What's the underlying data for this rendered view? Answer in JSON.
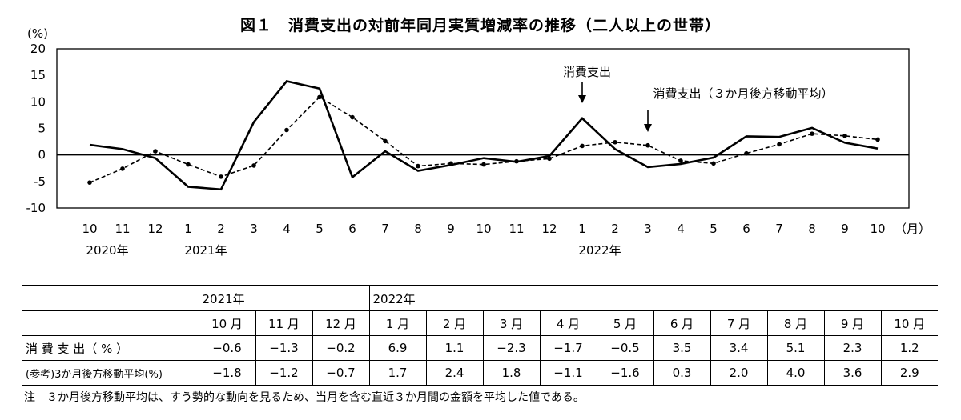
{
  "chart_data": {
    "type": "line",
    "title": "図１　消費支出の対前年同月実質増減率の推移（二人以上の世帯）",
    "ylabel": "(%)",
    "xunit": "（月）",
    "ylim": [
      -10,
      20
    ],
    "yticks": [
      20,
      15,
      10,
      5,
      0,
      -5,
      -10
    ],
    "categories": [
      "10",
      "11",
      "12",
      "1",
      "2",
      "3",
      "4",
      "5",
      "6",
      "7",
      "8",
      "9",
      "10",
      "11",
      "12",
      "1",
      "2",
      "3",
      "4",
      "5",
      "6",
      "7",
      "8",
      "9",
      "10"
    ],
    "year_labels": [
      {
        "index": 0,
        "label": "2020年"
      },
      {
        "index": 3,
        "label": "2021年"
      },
      {
        "index": 15,
        "label": "2022年"
      }
    ],
    "series": [
      {
        "name": "消費支出",
        "style": "solid",
        "color": "#000000",
        "values": [
          1.9,
          1.1,
          -0.6,
          -6.0,
          -6.5,
          6.2,
          13.9,
          12.5,
          -4.2,
          0.7,
          -3.0,
          -1.9,
          -0.6,
          -1.3,
          -0.2,
          6.9,
          1.1,
          -2.3,
          -1.7,
          -0.5,
          3.5,
          3.4,
          5.1,
          2.3,
          1.2
        ]
      },
      {
        "name": "消費支出（３か月後方移動平均）",
        "style": "dashed",
        "color": "#000000",
        "values": [
          -5.2,
          -2.6,
          0.7,
          -1.8,
          -4.1,
          -2.0,
          4.7,
          10.9,
          7.1,
          2.6,
          -2.1,
          -1.6,
          -1.8,
          -1.2,
          -0.7,
          1.7,
          2.4,
          1.8,
          -1.1,
          -1.6,
          0.3,
          2.0,
          4.0,
          3.6,
          2.9
        ]
      }
    ],
    "annotations": [
      {
        "text": "消費支出",
        "target_series": 0,
        "index": 15
      },
      {
        "text": "消費支出（３か月後方移動平均）",
        "target_series": 1,
        "index": 17
      }
    ],
    "grid": false,
    "legend": "none"
  },
  "table": {
    "year_2021": "2021年",
    "year_2022": "2022年",
    "months": [
      "10 月",
      "11 月",
      "12 月",
      "1 月",
      "2 月",
      "3 月",
      "4 月",
      "5 月",
      "6 月",
      "7 月",
      "8 月",
      "9 月",
      "10 月"
    ],
    "row1_label": "消 費 支 出（ % ）",
    "row1_values": [
      "−0.6",
      "−1.3",
      "−0.2",
      "6.9",
      "1.1",
      "−2.3",
      "−1.7",
      "−0.5",
      "3.5",
      "3.4",
      "5.1",
      "2.3",
      "1.2"
    ],
    "row2_label": "(参考)3か月後方移動平均(%)",
    "row2_values": [
      "−1.8",
      "−1.2",
      "−0.7",
      "1.7",
      "2.4",
      "1.8",
      "−1.1",
      "−1.6",
      "0.3",
      "2.0",
      "4.0",
      "3.6",
      "2.9"
    ]
  },
  "note": "注　３か月後方移動平均は、すう勢的な動向を見るため、当月を含む直近３か月間の金額を平均した値である。"
}
